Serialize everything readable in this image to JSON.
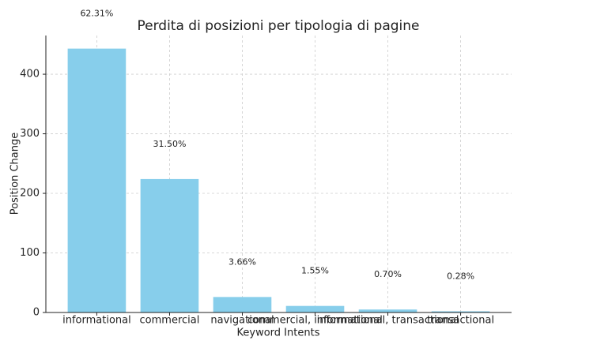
{
  "chart_data": {
    "type": "bar",
    "title": "Perdita di posizioni per tipologia di pagine",
    "x_label": "Keyword Intents",
    "y_label": "Position Change",
    "categories": [
      "informational",
      "commercial",
      "navigational",
      "commercial, informational",
      "informational, transactional",
      "transactional"
    ],
    "values": [
      443,
      224,
      26,
      11,
      5,
      2
    ],
    "annotations": [
      "62.31%",
      "31.50%",
      "3.66%",
      "1.55%",
      "0.70%",
      "0.28%"
    ],
    "color": "#87ceeb",
    "ylim": [
      0,
      465
    ],
    "yticks": [
      0,
      100,
      200,
      300,
      400
    ],
    "grid": true
  }
}
